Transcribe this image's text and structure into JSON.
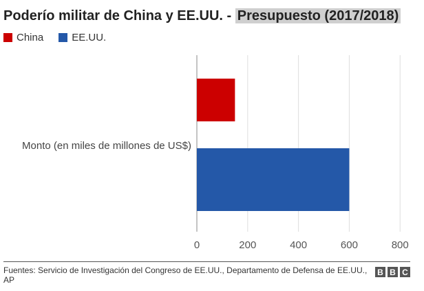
{
  "header": {
    "title_main": "Poderío militar de China y EE.UU. -",
    "title_highlight": "Presupuesto (2017/2018)"
  },
  "legend": [
    {
      "label": "China",
      "color": "#cc0000"
    },
    {
      "label": "EE.UU.",
      "color": "#2458a8"
    }
  ],
  "chart_data": {
    "type": "bar",
    "orientation": "horizontal",
    "categories": [
      "Monto (en miles de millones de US$)"
    ],
    "series": [
      {
        "name": "China",
        "values": [
          150
        ],
        "color": "#cc0000"
      },
      {
        "name": "EE.UU.",
        "values": [
          600
        ],
        "color": "#2458a8"
      }
    ],
    "xlim": [
      0,
      840
    ],
    "xticks": [
      0,
      200,
      400,
      600,
      800
    ],
    "grid": true,
    "legend_position": "top-left"
  },
  "footer": {
    "source": "Fuentes: Servicio de Investigación del Congreso de EE.UU., Departamento de Defensa de EE.UU., AP",
    "logo_letters": [
      "B",
      "B",
      "C"
    ]
  }
}
